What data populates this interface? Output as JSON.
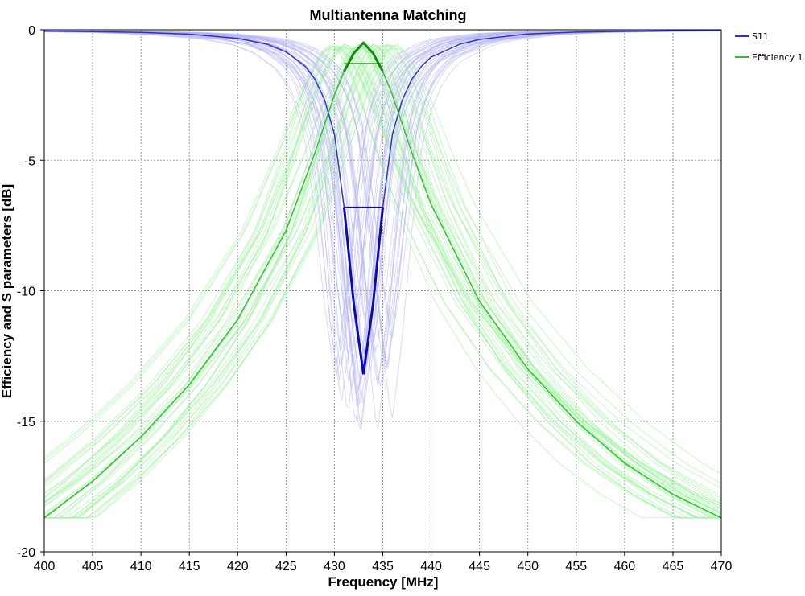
{
  "chart_data": {
    "type": "line",
    "title": "Multiantenna Matching",
    "xlabel": "Frequency [MHz]",
    "ylabel": "Efficiency and S parameters [dB]",
    "xlim": [
      400,
      470
    ],
    "ylim": [
      -20,
      0
    ],
    "x_ticks": [
      400,
      405,
      410,
      415,
      420,
      425,
      430,
      435,
      440,
      445,
      450,
      455,
      460,
      465,
      470
    ],
    "y_ticks": [
      0,
      -5,
      -10,
      -15,
      -20
    ],
    "grid": true,
    "legend_position": "top-right",
    "series": [
      {
        "name": "S11",
        "color": "#3030d0",
        "x": [
          400,
          405,
          410,
          415,
          420,
          423,
          425,
          427,
          428,
          429,
          430,
          431,
          432,
          433,
          434,
          435,
          436,
          437,
          438,
          439,
          440,
          443,
          445,
          450,
          455,
          460,
          465,
          470
        ],
        "values": [
          -0.05,
          -0.07,
          -0.1,
          -0.17,
          -0.33,
          -0.55,
          -0.85,
          -1.4,
          -1.9,
          -2.7,
          -4.0,
          -6.8,
          -10.5,
          -13.2,
          -10.5,
          -6.8,
          -4.0,
          -2.7,
          -1.9,
          -1.4,
          -1.05,
          -0.55,
          -0.37,
          -0.16,
          -0.09,
          -0.06,
          -0.04,
          -0.03
        ]
      },
      {
        "name": "Efficiency 1",
        "color": "#30c030",
        "x": [
          400,
          405,
          410,
          415,
          420,
          425,
          428,
          430,
          431,
          432,
          433,
          434,
          435,
          436,
          438,
          440,
          445,
          450,
          455,
          460,
          465,
          470
        ],
        "values": [
          -18.7,
          -17.3,
          -15.6,
          -13.6,
          -11.1,
          -7.7,
          -4.7,
          -2.5,
          -1.6,
          -0.9,
          -0.5,
          -0.9,
          -1.6,
          -2.5,
          -4.7,
          -6.7,
          -10.4,
          -13.0,
          -15.0,
          -16.6,
          -17.8,
          -18.7
        ]
      }
    ],
    "annotations": [
      {
        "series": "S11",
        "x_range": [
          431,
          435
        ],
        "level": -6.8
      },
      {
        "series": "Efficiency 1",
        "x_range": [
          431,
          435
        ],
        "level": -1.3
      }
    ]
  }
}
